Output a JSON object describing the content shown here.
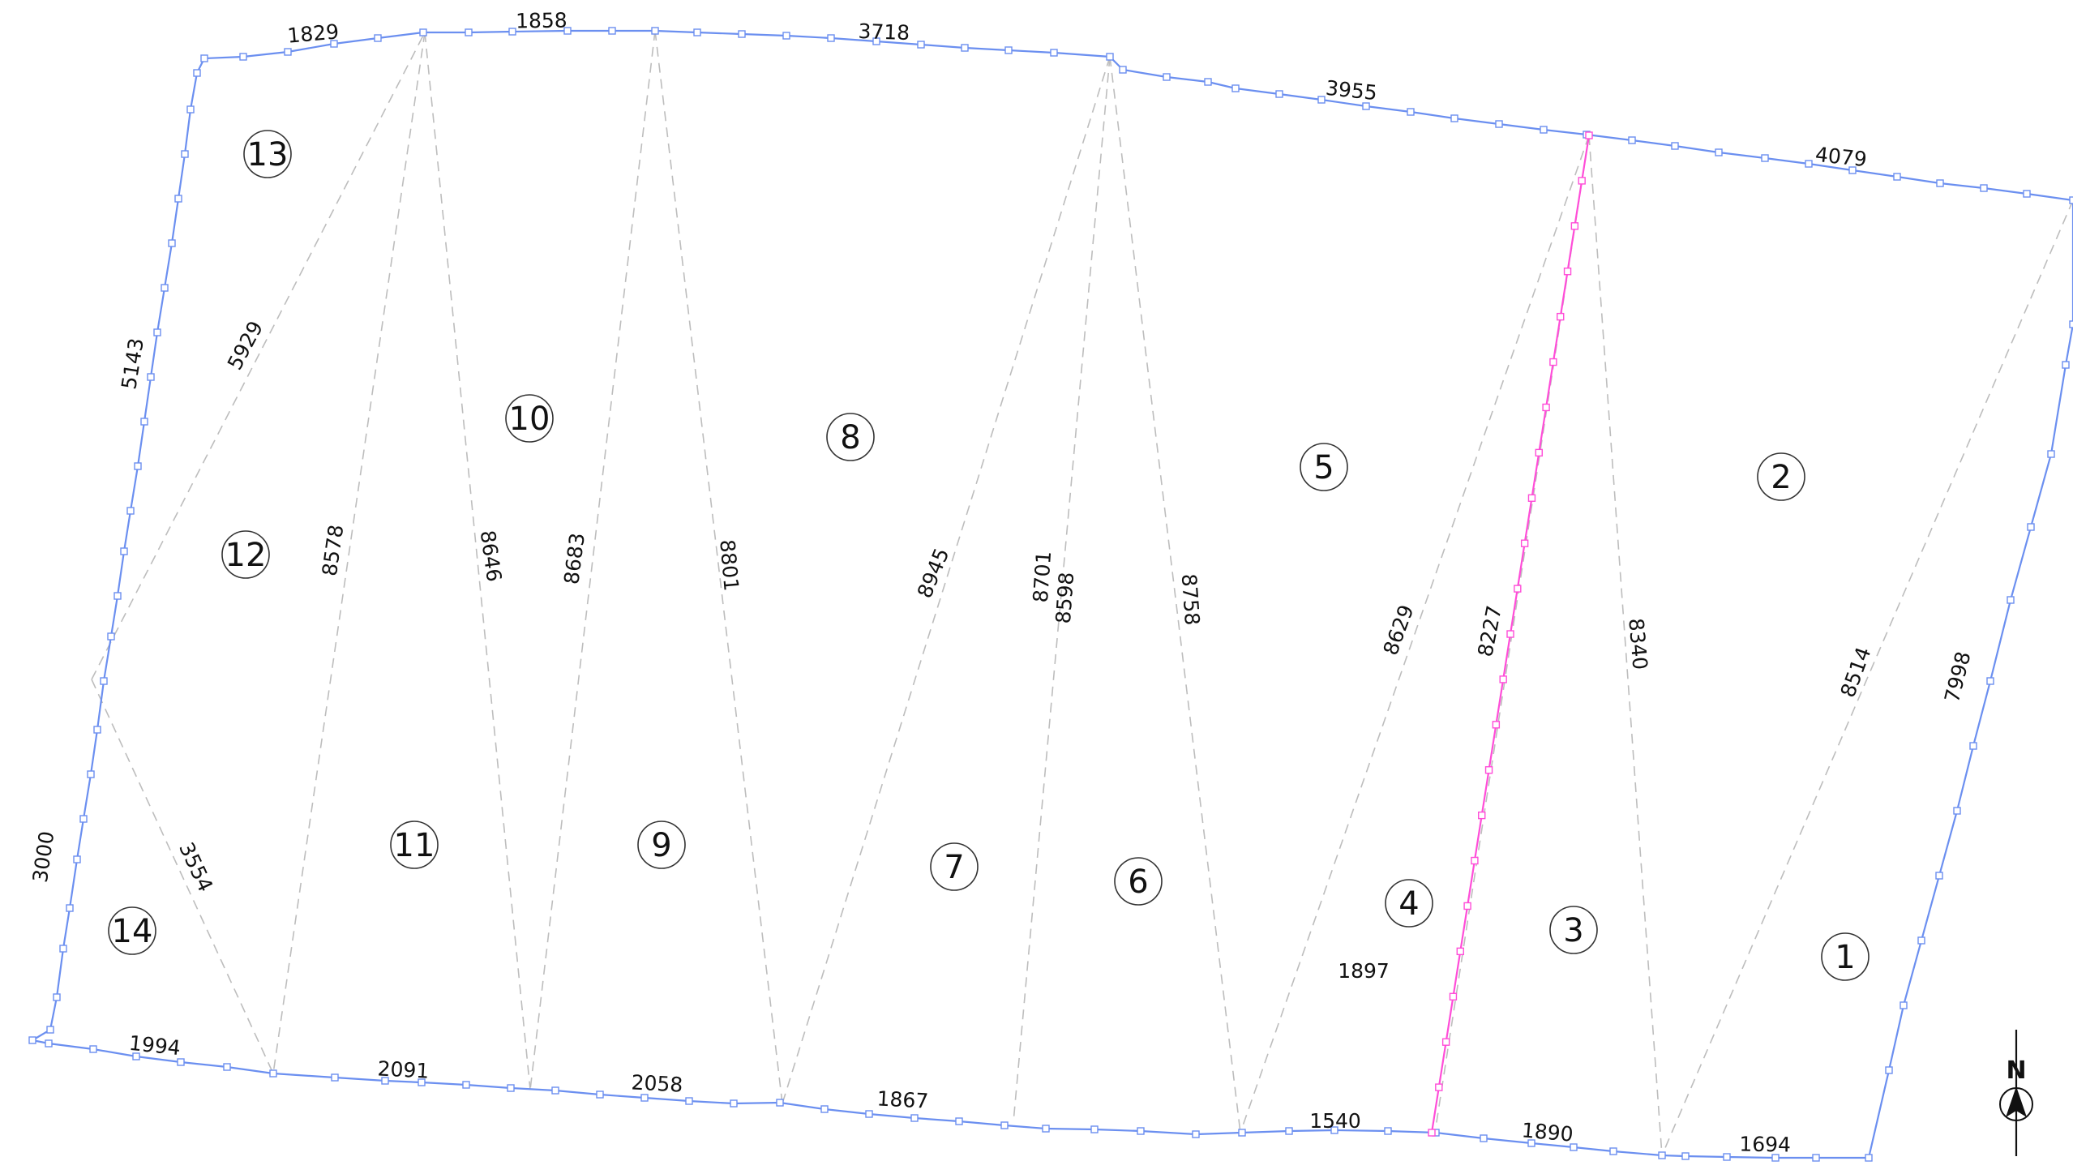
{
  "colors": {
    "boundary": "#6b8ff0",
    "dividing_line": "#ff4dd8",
    "triangulation": "#bdbdbd",
    "text": "#111111",
    "background": "#ffffff"
  },
  "boundary_dimensions": [
    "1829",
    "1858",
    "3718",
    "3955",
    "4079",
    "5143",
    "3000",
    "1994",
    "2091",
    "2058",
    "1867",
    "1540",
    "1890",
    "1694",
    "7998"
  ],
  "triangulation_dimensions": [
    "5929",
    "8578",
    "8646",
    "8683",
    "8801",
    "8945",
    "8701",
    "8598",
    "8758",
    "8629",
    "8227",
    "8340",
    "8514",
    "3554"
  ],
  "extra_dimension": "1897",
  "plot_numbers": [
    "1",
    "2",
    "3",
    "4",
    "5",
    "6",
    "7",
    "8",
    "9",
    "10",
    "11",
    "12",
    "13",
    "14"
  ],
  "north_label": "N",
  "north_icon": "north-arrow-icon"
}
